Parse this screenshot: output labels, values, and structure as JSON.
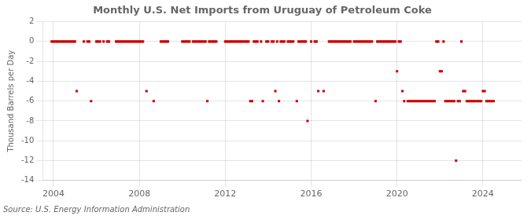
{
  "chart_data": {
    "type": "scatter",
    "title": "Monthly U.S. Net Imports from Uruguay of Petroleum Coke",
    "ylabel": "Thousand Barrels per Day",
    "annotations": [
      "Source: U.S. Energy Information Administration"
    ],
    "color": "#cc0000",
    "marker": "square",
    "grid": true,
    "xlim": [
      2003.5,
      2025.8
    ],
    "xticks": [
      2004,
      2008,
      2012,
      2016,
      2020,
      2024
    ],
    "ylim": [
      -14,
      2
    ],
    "yticks": [
      2,
      0,
      -2,
      -4,
      -6,
      -8,
      -10,
      -12,
      -14
    ],
    "x": [
      2003.917,
      2004.0,
      2004.083,
      2004.167,
      2004.25,
      2004.333,
      2004.417,
      2004.5,
      2004.583,
      2004.667,
      2004.75,
      2004.833,
      2004.917,
      2005.0,
      2005.083,
      2005.417,
      2005.583,
      2005.667,
      2005.75,
      2006.0,
      2006.083,
      2006.167,
      2006.333,
      2006.5,
      2006.583,
      2006.917,
      2007.0,
      2007.083,
      2007.167,
      2007.25,
      2007.333,
      2007.417,
      2007.5,
      2007.583,
      2007.667,
      2007.75,
      2007.833,
      2007.917,
      2008.0,
      2008.083,
      2008.167,
      2008.333,
      2008.667,
      2009.0,
      2009.083,
      2009.167,
      2009.25,
      2009.333,
      2010.0,
      2010.083,
      2010.167,
      2010.25,
      2010.333,
      2010.5,
      2010.583,
      2010.667,
      2010.75,
      2010.833,
      2010.917,
      2011.0,
      2011.083,
      2011.167,
      2011.25,
      2011.333,
      2011.417,
      2011.5,
      2011.583,
      2012.0,
      2012.083,
      2012.167,
      2012.25,
      2012.333,
      2012.417,
      2012.5,
      2012.583,
      2012.667,
      2012.75,
      2012.833,
      2012.917,
      2013.0,
      2013.083,
      2013.167,
      2013.25,
      2013.333,
      2013.417,
      2013.5,
      2013.667,
      2013.75,
      2013.917,
      2014.0,
      2014.167,
      2014.25,
      2014.333,
      2014.417,
      2014.5,
      2014.583,
      2014.667,
      2014.75,
      2014.917,
      2015.0,
      2015.083,
      2015.167,
      2015.333,
      2015.417,
      2015.5,
      2015.583,
      2015.667,
      2015.75,
      2015.833,
      2016.0,
      2016.167,
      2016.25,
      2016.333,
      2016.583,
      2016.833,
      2016.917,
      2017.0,
      2017.083,
      2017.167,
      2017.25,
      2017.333,
      2017.417,
      2017.5,
      2017.583,
      2017.667,
      2017.75,
      2017.833,
      2018.0,
      2018.083,
      2018.167,
      2018.25,
      2018.333,
      2018.417,
      2018.5,
      2018.583,
      2018.667,
      2018.75,
      2018.833,
      2019.0,
      2019.083,
      2019.167,
      2019.25,
      2019.333,
      2019.417,
      2019.5,
      2019.583,
      2019.667,
      2019.75,
      2019.833,
      2019.917,
      2020.0,
      2020.083,
      2020.167,
      2020.25,
      2020.333,
      2020.5,
      2020.583,
      2020.667,
      2020.75,
      2020.833,
      2020.917,
      2021.0,
      2021.083,
      2021.167,
      2021.25,
      2021.333,
      2021.417,
      2021.5,
      2021.583,
      2021.667,
      2021.75,
      2021.833,
      2021.917,
      2022.0,
      2022.083,
      2022.167,
      2022.25,
      2022.333,
      2022.417,
      2022.5,
      2022.583,
      2022.667,
      2022.75,
      2022.833,
      2022.917,
      2023.0,
      2023.083,
      2023.167,
      2023.25,
      2023.333,
      2023.417,
      2023.5,
      2023.583,
      2023.667,
      2023.75,
      2023.833,
      2023.917,
      2024.0,
      2024.083,
      2024.167,
      2024.25,
      2024.333,
      2024.417,
      2024.5
    ],
    "values": [
      0,
      0,
      0,
      0,
      0,
      0,
      0,
      0,
      0,
      0,
      0,
      0,
      0,
      0,
      -5,
      0,
      0,
      0,
      -6,
      0,
      0,
      0,
      0,
      0,
      0,
      0,
      0,
      0,
      0,
      0,
      0,
      0,
      0,
      0,
      0,
      0,
      0,
      0,
      0,
      0,
      0,
      -5,
      -6,
      0,
      0,
      0,
      0,
      0,
      0,
      0,
      0,
      0,
      0,
      0,
      0,
      0,
      0,
      0,
      0,
      0,
      0,
      -6,
      0,
      0,
      0,
      0,
      0,
      0,
      0,
      0,
      0,
      0,
      0,
      0,
      0,
      0,
      0,
      0,
      0,
      0,
      0,
      -6,
      -6,
      0,
      0,
      0,
      0,
      -6,
      0,
      0,
      0,
      0,
      -5,
      0,
      -6,
      0,
      0,
      0,
      0,
      0,
      0,
      0,
      -6,
      0,
      0,
      0,
      0,
      0,
      -8,
      0,
      0,
      0,
      -5,
      -5,
      0,
      0,
      0,
      0,
      0,
      0,
      0,
      0,
      0,
      0,
      0,
      0,
      0,
      0,
      0,
      0,
      0,
      0,
      0,
      0,
      0,
      0,
      0,
      0,
      -6,
      0,
      0,
      0,
      0,
      0,
      0,
      0,
      0,
      0,
      0,
      0,
      -3,
      0,
      0,
      -5,
      -6,
      -6,
      -6,
      -6,
      -6,
      -6,
      -6,
      -6,
      -6,
      -6,
      -6,
      -6,
      -6,
      -6,
      -6,
      -6,
      -6,
      0,
      0,
      -3,
      -3,
      0,
      -6,
      -6,
      -6,
      -6,
      -6,
      -6,
      -12,
      -6,
      -6,
      0,
      -5,
      -5,
      -6,
      -6,
      -6,
      -6,
      -6,
      -6,
      -6,
      -6,
      -6,
      -5,
      -5,
      -6,
      -6,
      -6,
      -6,
      -6
    ]
  }
}
